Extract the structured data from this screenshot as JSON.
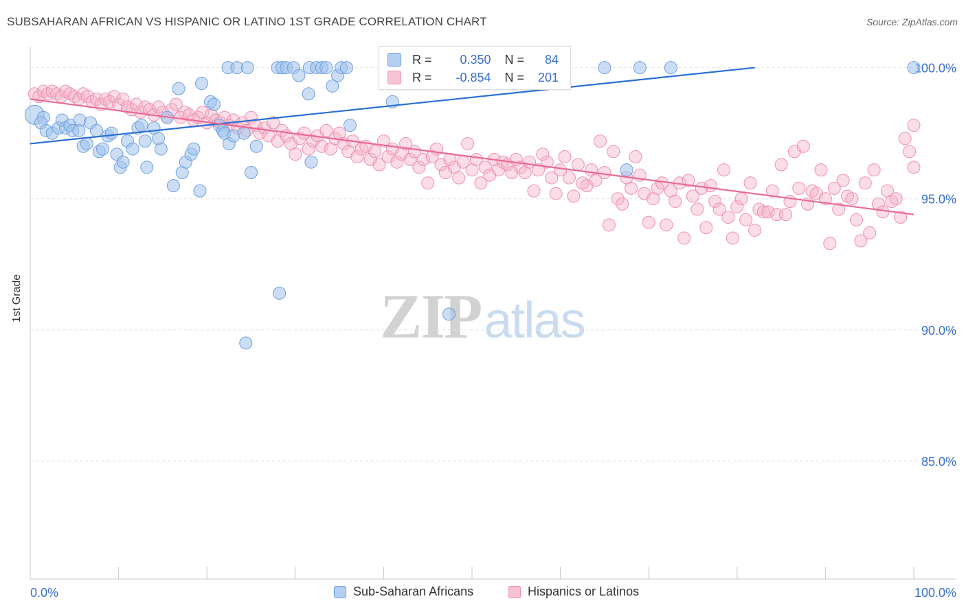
{
  "header": {
    "title": "SUBSAHARAN AFRICAN VS HISPANIC OR LATINO 1ST GRADE CORRELATION CHART",
    "source": "Source: ZipAtlas.com"
  },
  "watermark": {
    "zip": "ZIP",
    "atlas": "atlas"
  },
  "stats": {
    "rows": [
      {
        "r_label": "R = ",
        "r_value": "0.350",
        "n_label": "N = ",
        "n_value": "84"
      },
      {
        "r_label": "R = ",
        "r_value": "-0.854",
        "n_label": "N = ",
        "n_value": "201"
      }
    ]
  },
  "legend": {
    "items": [
      "Sub-Saharan Africans",
      "Hispanics or Latinos"
    ]
  },
  "colors": {
    "blue_fill": "rgba(160,195,235,0.55)",
    "blue_stroke": "#6f9fe0",
    "blue_line": "#2a6fd6",
    "pink_fill": "rgba(245,180,200,0.45)",
    "pink_stroke": "#ee8fae",
    "pink_line": "#e96a96",
    "tick_label": "#3a6fd0",
    "grid": "#e3e3e3"
  },
  "chart_data": {
    "type": "scatter",
    "title": "SUBSAHARAN AFRICAN VS HISPANIC OR LATINO 1ST GRADE CORRELATION CHART",
    "xlabel": "",
    "ylabel": "1st Grade",
    "xlim": [
      0,
      100
    ],
    "ylim": [
      80.5,
      100.8
    ],
    "x_tick_labels": [
      "0.0%",
      "100.0%"
    ],
    "y_ticks": [
      85,
      90,
      95,
      100
    ],
    "y_tick_labels": [
      "85.0%",
      "90.0%",
      "95.0%",
      "100.0%"
    ],
    "grid": true,
    "legend_position": "bottom",
    "series": [
      {
        "name": "Sub-Saharan Africans",
        "color": "#6f9fe0",
        "R": 0.35,
        "N": 84,
        "trend": [
          [
            0,
            97.1
          ],
          [
            82,
            100
          ]
        ],
        "points": [
          [
            0.5,
            98.2
          ],
          [
            1.5,
            98.1
          ],
          [
            1.2,
            97.9
          ],
          [
            1.8,
            97.6
          ],
          [
            2.5,
            97.5
          ],
          [
            3.2,
            97.7
          ],
          [
            3.6,
            98.0
          ],
          [
            4.0,
            97.7
          ],
          [
            4.5,
            97.8
          ],
          [
            4.8,
            97.6
          ],
          [
            5.5,
            97.6
          ],
          [
            5.6,
            98.0
          ],
          [
            6.0,
            97.0
          ],
          [
            6.4,
            97.1
          ],
          [
            6.8,
            97.9
          ],
          [
            7.5,
            97.6
          ],
          [
            7.8,
            96.8
          ],
          [
            8.2,
            96.9
          ],
          [
            8.8,
            97.4
          ],
          [
            9.2,
            97.5
          ],
          [
            9.8,
            96.7
          ],
          [
            10.2,
            96.2
          ],
          [
            10.5,
            96.4
          ],
          [
            11.0,
            97.2
          ],
          [
            11.6,
            96.9
          ],
          [
            12.2,
            97.7
          ],
          [
            12.6,
            97.8
          ],
          [
            13.0,
            97.2
          ],
          [
            13.2,
            96.2
          ],
          [
            14.0,
            97.7
          ],
          [
            14.5,
            97.3
          ],
          [
            14.8,
            96.9
          ],
          [
            15.5,
            98.1
          ],
          [
            16.2,
            95.5
          ],
          [
            16.8,
            99.2
          ],
          [
            17.2,
            96.0
          ],
          [
            17.6,
            96.4
          ],
          [
            18.2,
            96.7
          ],
          [
            18.5,
            96.9
          ],
          [
            19.2,
            95.3
          ],
          [
            19.4,
            99.4
          ],
          [
            20.4,
            98.7
          ],
          [
            20.8,
            98.6
          ],
          [
            21.4,
            97.8
          ],
          [
            21.8,
            97.6
          ],
          [
            22.0,
            97.5
          ],
          [
            22.5,
            97.1
          ],
          [
            23.0,
            97.4
          ],
          [
            22.4,
            100.0
          ],
          [
            23.4,
            100.0
          ],
          [
            24.2,
            97.5
          ],
          [
            24.6,
            100.0
          ],
          [
            25.0,
            96.0
          ],
          [
            25.6,
            97.0
          ],
          [
            28.0,
            100.0
          ],
          [
            28.5,
            100.0
          ],
          [
            29.0,
            100.0
          ],
          [
            29.8,
            100.0
          ],
          [
            30.4,
            99.7
          ],
          [
            31.5,
            99.0
          ],
          [
            31.8,
            96.4
          ],
          [
            31.6,
            100.0
          ],
          [
            32.4,
            100.0
          ],
          [
            33.0,
            100.0
          ],
          [
            33.5,
            100.0
          ],
          [
            34.2,
            99.3
          ],
          [
            34.8,
            99.7
          ],
          [
            35.2,
            100.0
          ],
          [
            35.8,
            100.0
          ],
          [
            36.2,
            97.8
          ],
          [
            41.0,
            98.7
          ],
          [
            47.5,
            100.0
          ],
          [
            49.5,
            100.0
          ],
          [
            52.0,
            100.0
          ],
          [
            55.0,
            100.0
          ],
          [
            60.0,
            100.0
          ],
          [
            65.0,
            100.0
          ],
          [
            69.0,
            100.0
          ],
          [
            67.5,
            96.1
          ],
          [
            72.5,
            100.0
          ],
          [
            28.2,
            91.4
          ],
          [
            47.4,
            90.6
          ],
          [
            24.4,
            89.5
          ],
          [
            100.0,
            100.0
          ]
        ]
      },
      {
        "name": "Hispanics or Latinos",
        "color": "#ee8fae",
        "R": -0.854,
        "N": 201,
        "trend": [
          [
            0,
            98.8
          ],
          [
            100,
            94.4
          ]
        ],
        "points": [
          [
            0.5,
            99.0
          ],
          [
            1.0,
            98.9
          ],
          [
            1.5,
            99.1
          ],
          [
            2.0,
            99.0
          ],
          [
            2.5,
            99.1
          ],
          [
            3.0,
            99.0
          ],
          [
            3.5,
            98.9
          ],
          [
            4.0,
            99.1
          ],
          [
            4.5,
            99.0
          ],
          [
            5.0,
            98.9
          ],
          [
            5.5,
            98.8
          ],
          [
            6.0,
            99.0
          ],
          [
            6.5,
            98.9
          ],
          [
            7.0,
            98.7
          ],
          [
            7.5,
            98.8
          ],
          [
            8.0,
            98.6
          ],
          [
            8.5,
            98.8
          ],
          [
            9.0,
            98.7
          ],
          [
            9.5,
            98.9
          ],
          [
            10.0,
            98.6
          ],
          [
            10.5,
            98.8
          ],
          [
            11.0,
            98.5
          ],
          [
            11.5,
            98.4
          ],
          [
            12.0,
            98.6
          ],
          [
            12.5,
            98.3
          ],
          [
            13.0,
            98.5
          ],
          [
            13.5,
            98.4
          ],
          [
            14.0,
            98.2
          ],
          [
            14.5,
            98.5
          ],
          [
            15.0,
            98.3
          ],
          [
            15.5,
            98.1
          ],
          [
            16.0,
            98.4
          ],
          [
            16.5,
            98.6
          ],
          [
            17.0,
            98.1
          ],
          [
            17.5,
            98.3
          ],
          [
            18.0,
            98.2
          ],
          [
            18.5,
            98.0
          ],
          [
            19.0,
            98.1
          ],
          [
            19.5,
            98.3
          ],
          [
            20.0,
            97.9
          ],
          [
            20.5,
            98.2
          ],
          [
            21.0,
            98.0
          ],
          [
            21.5,
            97.9
          ],
          [
            22.0,
            98.1
          ],
          [
            22.5,
            97.8
          ],
          [
            23.0,
            98.0
          ],
          [
            23.5,
            97.7
          ],
          [
            24.0,
            97.9
          ],
          [
            24.5,
            97.6
          ],
          [
            25.0,
            98.1
          ],
          [
            25.5,
            97.8
          ],
          [
            26.0,
            97.5
          ],
          [
            26.5,
            97.7
          ],
          [
            27.0,
            97.4
          ],
          [
            27.5,
            97.9
          ],
          [
            28.0,
            97.2
          ],
          [
            28.5,
            97.6
          ],
          [
            29.0,
            97.4
          ],
          [
            29.5,
            97.1
          ],
          [
            30.0,
            96.7
          ],
          [
            30.5,
            97.3
          ],
          [
            31.0,
            97.5
          ],
          [
            31.5,
            96.9
          ],
          [
            32.0,
            97.2
          ],
          [
            32.5,
            97.4
          ],
          [
            33.0,
            97.0
          ],
          [
            33.5,
            97.6
          ],
          [
            34.0,
            96.9
          ],
          [
            34.5,
            97.3
          ],
          [
            35.0,
            97.5
          ],
          [
            35.5,
            97.1
          ],
          [
            36.0,
            96.8
          ],
          [
            36.5,
            97.2
          ],
          [
            37.0,
            96.6
          ],
          [
            37.5,
            96.9
          ],
          [
            38.0,
            97.0
          ],
          [
            38.5,
            96.5
          ],
          [
            39.0,
            96.8
          ],
          [
            39.5,
            96.3
          ],
          [
            40.0,
            97.2
          ],
          [
            40.5,
            96.6
          ],
          [
            41.0,
            96.9
          ],
          [
            41.5,
            96.4
          ],
          [
            42.0,
            96.7
          ],
          [
            42.5,
            97.1
          ],
          [
            43.0,
            96.5
          ],
          [
            43.5,
            96.8
          ],
          [
            44.0,
            96.2
          ],
          [
            44.5,
            96.5
          ],
          [
            45.0,
            95.6
          ],
          [
            45.5,
            96.6
          ],
          [
            46.0,
            96.9
          ],
          [
            46.5,
            96.3
          ],
          [
            47.0,
            96.0
          ],
          [
            47.5,
            96.5
          ],
          [
            48.0,
            96.2
          ],
          [
            48.5,
            95.8
          ],
          [
            49.0,
            96.4
          ],
          [
            49.5,
            97.1
          ],
          [
            50.0,
            96.1
          ],
          [
            50.5,
            96.5
          ],
          [
            51.0,
            95.6
          ],
          [
            51.5,
            96.2
          ],
          [
            52.0,
            95.9
          ],
          [
            52.5,
            96.5
          ],
          [
            53.0,
            96.1
          ],
          [
            53.5,
            96.4
          ],
          [
            54.0,
            96.3
          ],
          [
            54.5,
            96.0
          ],
          [
            55.0,
            96.5
          ],
          [
            55.5,
            96.2
          ],
          [
            56.0,
            96.0
          ],
          [
            56.5,
            96.4
          ],
          [
            57.0,
            95.3
          ],
          [
            57.5,
            96.1
          ],
          [
            58.0,
            96.7
          ],
          [
            58.5,
            96.4
          ],
          [
            59.0,
            95.8
          ],
          [
            59.5,
            95.2
          ],
          [
            60.0,
            96.1
          ],
          [
            60.5,
            96.6
          ],
          [
            61.0,
            95.8
          ],
          [
            61.5,
            95.1
          ],
          [
            62.0,
            96.3
          ],
          [
            62.5,
            95.6
          ],
          [
            63.0,
            95.5
          ],
          [
            63.5,
            96.1
          ],
          [
            64.0,
            95.7
          ],
          [
            64.5,
            97.2
          ],
          [
            65.0,
            96.0
          ],
          [
            65.5,
            94.0
          ],
          [
            66.0,
            96.8
          ],
          [
            66.5,
            95.0
          ],
          [
            67.0,
            94.8
          ],
          [
            67.5,
            95.8
          ],
          [
            68.0,
            95.4
          ],
          [
            68.5,
            96.6
          ],
          [
            69.0,
            95.9
          ],
          [
            69.5,
            95.2
          ],
          [
            70.0,
            94.1
          ],
          [
            70.5,
            95.0
          ],
          [
            71.0,
            95.4
          ],
          [
            71.5,
            95.6
          ],
          [
            72.0,
            94.0
          ],
          [
            72.5,
            95.3
          ],
          [
            73.0,
            94.9
          ],
          [
            73.5,
            95.6
          ],
          [
            74.0,
            93.5
          ],
          [
            74.5,
            95.7
          ],
          [
            75.0,
            95.1
          ],
          [
            75.5,
            94.6
          ],
          [
            76.0,
            95.4
          ],
          [
            76.5,
            93.9
          ],
          [
            77.0,
            95.5
          ],
          [
            77.5,
            94.9
          ],
          [
            78.0,
            94.6
          ],
          [
            78.5,
            96.1
          ],
          [
            79.0,
            94.3
          ],
          [
            79.5,
            93.5
          ],
          [
            80.0,
            94.7
          ],
          [
            80.5,
            95.0
          ],
          [
            81.0,
            94.2
          ],
          [
            81.5,
            95.6
          ],
          [
            82.0,
            93.8
          ],
          [
            82.5,
            94.6
          ],
          [
            83.0,
            94.5
          ],
          [
            83.5,
            94.5
          ],
          [
            84.0,
            95.3
          ],
          [
            84.5,
            94.4
          ],
          [
            85.0,
            96.3
          ],
          [
            85.5,
            94.4
          ],
          [
            86.0,
            94.9
          ],
          [
            86.5,
            96.8
          ],
          [
            87.0,
            95.4
          ],
          [
            87.5,
            97.0
          ],
          [
            88.0,
            94.8
          ],
          [
            88.5,
            95.3
          ],
          [
            89.0,
            95.2
          ],
          [
            89.5,
            96.1
          ],
          [
            90.0,
            95.0
          ],
          [
            90.5,
            93.3
          ],
          [
            91.0,
            95.4
          ],
          [
            91.5,
            94.6
          ],
          [
            92.0,
            95.7
          ],
          [
            92.5,
            95.1
          ],
          [
            93.0,
            95.0
          ],
          [
            93.5,
            94.2
          ],
          [
            94.0,
            93.4
          ],
          [
            94.5,
            95.6
          ],
          [
            95.0,
            93.7
          ],
          [
            95.5,
            96.1
          ],
          [
            96.0,
            94.8
          ],
          [
            96.5,
            94.5
          ],
          [
            97.0,
            95.3
          ],
          [
            97.5,
            94.9
          ],
          [
            98.0,
            95.0
          ],
          [
            98.5,
            94.3
          ],
          [
            99.0,
            97.3
          ],
          [
            99.5,
            96.8
          ],
          [
            100.0,
            97.8
          ],
          [
            100.0,
            96.2
          ]
        ]
      }
    ]
  }
}
